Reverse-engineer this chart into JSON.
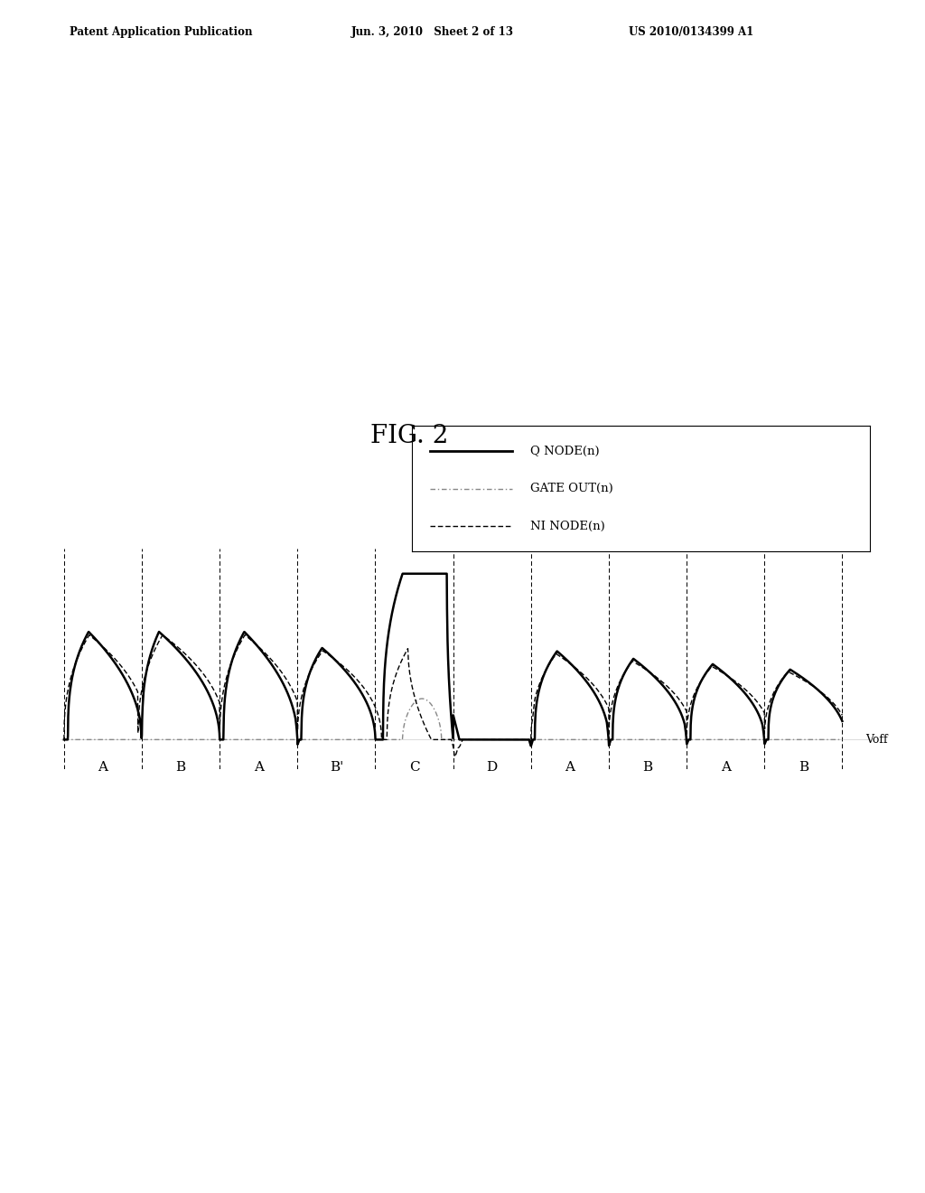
{
  "title": "FIG. 2",
  "header_left": "Patent Application Publication",
  "header_center": "Jun. 3, 2010   Sheet 2 of 13",
  "header_right": "US 2010/0134399 A1",
  "legend_entries": [
    "Q NODE(n)",
    "GATE OUT(n)",
    "NI NODE(n)"
  ],
  "period_labels": [
    "A",
    "B",
    "A",
    "B'",
    "C",
    "D",
    "A",
    "B",
    "A",
    "B"
  ],
  "voff_label": "Voff",
  "background_color": "#ffffff"
}
